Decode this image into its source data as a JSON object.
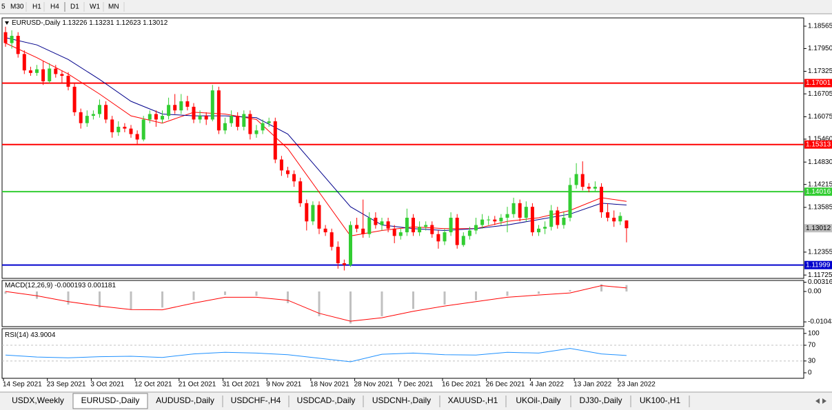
{
  "toolbar": {
    "timeframes": [
      "5",
      "M30",
      "H1",
      "H4",
      "D1",
      "W1",
      "MN"
    ]
  },
  "chart_data": [
    {
      "type": "candlestick",
      "title": "EURUSD-,Daily",
      "up_color": "#32cd32",
      "down_color": "#ff0000",
      "categories": [
        "14 Sep 2021",
        null,
        null,
        null,
        null,
        null,
        null,
        "23 Sep 2021",
        null,
        null,
        null,
        null,
        null,
        null,
        "3 Oct 2021",
        null,
        null,
        null,
        null,
        null,
        null,
        "12 Oct 2021",
        null,
        null,
        null,
        null,
        null,
        null,
        "21 Oct 2021",
        null,
        null,
        null,
        null,
        null,
        null,
        "31 Oct 2021",
        null,
        null,
        null,
        null,
        null,
        null,
        "9 Nov 2021",
        null,
        null,
        null,
        null,
        null,
        null,
        "18 Nov 2021",
        null,
        null,
        null,
        null,
        null,
        null,
        "28 Nov 2021",
        null,
        null,
        null,
        null,
        null,
        null,
        "7 Dec 2021",
        null,
        null,
        null,
        null,
        null,
        null,
        "16 Dec 2021",
        null,
        null,
        null,
        null,
        null,
        null,
        "26 Dec 2021",
        null,
        null,
        null,
        null,
        null,
        null,
        "4 Jan 2022",
        null,
        null,
        null,
        null,
        null,
        null,
        "13 Jan 2022",
        null,
        null,
        null,
        null,
        null,
        null,
        "23 Jan 2022",
        null
      ],
      "open": [
        1.184,
        1.181,
        1.183,
        1.178,
        1.1735,
        1.1728,
        1.1738,
        1.1705,
        1.174,
        1.1725,
        1.172,
        1.169,
        1.162,
        1.159,
        1.161,
        1.1615,
        1.164,
        1.16,
        1.1565,
        1.158,
        1.1575,
        1.156,
        1.1545,
        1.16,
        1.1615,
        1.16,
        1.161,
        1.164,
        1.1625,
        1.165,
        1.1635,
        1.16,
        1.161,
        1.16,
        1.168,
        1.157,
        1.159,
        1.161,
        1.158,
        1.1615,
        1.156,
        1.157,
        1.159,
        1.1595,
        1.149,
        1.146,
        1.145,
        1.143,
        1.137,
        1.132,
        1.1365,
        1.13,
        1.129,
        1.125,
        1.1205,
        1.12,
        1.131,
        1.13,
        1.1285,
        1.133,
        1.131,
        1.132,
        1.13,
        1.128,
        1.129,
        1.133,
        1.129,
        1.1305,
        1.131,
        1.1285,
        1.1265,
        1.129,
        1.133,
        1.1255,
        1.128,
        1.1295,
        1.131,
        1.1325,
        1.1325,
        1.132,
        1.133,
        1.134,
        1.137,
        1.133,
        1.136,
        1.129,
        1.13,
        1.1305,
        1.135,
        1.131,
        1.133,
        1.142,
        1.145,
        1.1415,
        1.141,
        1.1415,
        1.1345,
        1.133,
        1.132,
        1.13226
      ],
      "high": [
        1.1855,
        1.1845,
        1.184,
        1.179,
        1.1745,
        1.175,
        1.176,
        1.1755,
        1.175,
        1.1735,
        1.173,
        1.17,
        1.163,
        1.1625,
        1.1625,
        1.1655,
        1.165,
        1.161,
        1.1595,
        1.159,
        1.1585,
        1.157,
        1.161,
        1.1625,
        1.1625,
        1.1625,
        1.166,
        1.167,
        1.167,
        1.1665,
        1.1645,
        1.1625,
        1.162,
        1.1695,
        1.169,
        1.1605,
        1.1625,
        1.162,
        1.1625,
        1.1625,
        1.1585,
        1.16,
        1.1605,
        1.1605,
        1.15,
        1.147,
        1.146,
        1.144,
        1.138,
        1.1375,
        1.1375,
        1.131,
        1.13,
        1.1265,
        1.1215,
        1.132,
        1.133,
        1.138,
        1.1345,
        1.1345,
        1.133,
        1.133,
        1.131,
        1.13,
        1.1355,
        1.134,
        1.132,
        1.132,
        1.132,
        1.1295,
        1.13,
        1.1345,
        1.134,
        1.129,
        1.1305,
        1.133,
        1.134,
        1.1335,
        1.1335,
        1.134,
        1.136,
        1.1385,
        1.138,
        1.1375,
        1.137,
        1.131,
        1.132,
        1.1365,
        1.136,
        1.1345,
        1.144,
        1.148,
        1.1485,
        1.1425,
        1.143,
        1.1425,
        1.137,
        1.135,
        1.1345,
        1.13231
      ],
      "low": [
        1.18,
        1.1795,
        1.177,
        1.1725,
        1.172,
        1.172,
        1.1695,
        1.17,
        1.1715,
        1.17,
        1.168,
        1.161,
        1.1575,
        1.158,
        1.16,
        1.1605,
        1.159,
        1.155,
        1.1555,
        1.1565,
        1.155,
        1.153,
        1.154,
        1.159,
        1.158,
        1.159,
        1.16,
        1.1615,
        1.1615,
        1.1625,
        1.159,
        1.159,
        1.1585,
        1.1595,
        1.156,
        1.156,
        1.158,
        1.157,
        1.157,
        1.1545,
        1.155,
        1.156,
        1.158,
        1.148,
        1.1445,
        1.144,
        1.1415,
        1.136,
        1.1295,
        1.131,
        1.1285,
        1.128,
        1.124,
        1.119,
        1.1185,
        1.1195,
        1.129,
        1.1275,
        1.1275,
        1.13,
        1.1295,
        1.129,
        1.126,
        1.127,
        1.128,
        1.128,
        1.128,
        1.1295,
        1.1275,
        1.1245,
        1.1255,
        1.128,
        1.1245,
        1.125,
        1.127,
        1.1285,
        1.13,
        1.131,
        1.131,
        1.131,
        1.129,
        1.133,
        1.132,
        1.132,
        1.128,
        1.128,
        1.1285,
        1.1295,
        1.13,
        1.13,
        1.132,
        1.141,
        1.1405,
        1.14,
        1.14,
        1.133,
        1.132,
        1.1305,
        1.131,
        1.12623
      ],
      "close": [
        1.181,
        1.183,
        1.178,
        1.1735,
        1.1728,
        1.1738,
        1.1705,
        1.174,
        1.1725,
        1.172,
        1.169,
        1.162,
        1.159,
        1.161,
        1.1615,
        1.164,
        1.16,
        1.1565,
        1.158,
        1.1575,
        1.156,
        1.1545,
        1.16,
        1.1615,
        1.16,
        1.161,
        1.164,
        1.1625,
        1.165,
        1.1635,
        1.16,
        1.161,
        1.16,
        1.168,
        1.157,
        1.159,
        1.161,
        1.158,
        1.1615,
        1.156,
        1.157,
        1.159,
        1.1595,
        1.149,
        1.146,
        1.145,
        1.143,
        1.137,
        1.132,
        1.1365,
        1.13,
        1.129,
        1.125,
        1.1205,
        1.12,
        1.131,
        1.13,
        1.1285,
        1.133,
        1.131,
        1.132,
        1.13,
        1.128,
        1.129,
        1.133,
        1.129,
        1.1305,
        1.131,
        1.1285,
        1.1265,
        1.129,
        1.133,
        1.1255,
        1.128,
        1.1295,
        1.131,
        1.1325,
        1.1325,
        1.132,
        1.133,
        1.134,
        1.137,
        1.133,
        1.136,
        1.129,
        1.13,
        1.1305,
        1.135,
        1.131,
        1.133,
        1.142,
        1.145,
        1.1415,
        1.141,
        1.1415,
        1.1345,
        1.133,
        1.132,
        1.1335,
        1.13012
      ],
      "series": [
        {
          "color": "#ff0000",
          "x": [
            0,
            5,
            10,
            15,
            20,
            25,
            30,
            35,
            40,
            45,
            50,
            55,
            60,
            65,
            70,
            75,
            80,
            85,
            90,
            95,
            99
          ],
          "values": [
            1.181,
            1.177,
            1.1725,
            1.167,
            1.161,
            1.159,
            1.162,
            1.1615,
            1.16,
            1.152,
            1.14,
            1.128,
            1.1295,
            1.1305,
            1.13,
            1.13,
            1.132,
            1.133,
            1.135,
            1.1385,
            1.1375
          ]
        },
        {
          "color": "#00008b",
          "x": [
            0,
            5,
            10,
            15,
            20,
            25,
            30,
            35,
            40,
            45,
            50,
            55,
            60,
            65,
            70,
            75,
            80,
            85,
            90,
            95,
            99
          ],
          "values": [
            1.1825,
            1.1805,
            1.1765,
            1.171,
            1.165,
            1.1615,
            1.161,
            1.161,
            1.1605,
            1.156,
            1.146,
            1.136,
            1.131,
            1.13,
            1.1295,
            1.13,
            1.131,
            1.1325,
            1.134,
            1.137,
            1.1365
          ]
        }
      ],
      "levels": [
        {
          "value": 1.17001,
          "color": "#ff0000"
        },
        {
          "value": 1.15313,
          "color": "#ff0000"
        },
        {
          "value": 1.14016,
          "color": "#32cd32"
        },
        {
          "value": 1.11999,
          "color": "#0000cd"
        }
      ],
      "ylim": [
        1.11633,
        1.18792
      ],
      "yticks": [
        1.18565,
        {
          "value": 1.1795,
          "label": "1.17950"
        },
        1.17325,
        1.16705,
        1.16075,
        {
          "value": 1.1546,
          "label": "1.15460"
        },
        {
          "value": 1.1483,
          "label": "1.14830"
        },
        1.14215,
        1.13585,
        1.12355,
        1.11725
      ]
    },
    {
      "type": "macd",
      "title": "MACD(12,26,9)",
      "main_value": -0.000193,
      "signal_value": 0.001181,
      "histogram": {
        "color": "#c0c0c0",
        "x": [
          0,
          5,
          10,
          15,
          20,
          25,
          30,
          35,
          40,
          45,
          50,
          55,
          60,
          65,
          70,
          75,
          80,
          85,
          90,
          95,
          99
        ],
        "values": [
          -0.0008,
          -0.0025,
          -0.0045,
          -0.0055,
          -0.0062,
          -0.0055,
          -0.003,
          -0.0012,
          -0.0015,
          -0.004,
          -0.0085,
          -0.011,
          -0.0085,
          -0.006,
          -0.0045,
          -0.003,
          -0.0015,
          -0.0008,
          0.0005,
          0.0025,
          0.0022
        ]
      },
      "signal": {
        "color": "#ff0000",
        "x": [
          0,
          5,
          10,
          15,
          20,
          25,
          30,
          35,
          40,
          45,
          50,
          55,
          60,
          65,
          70,
          75,
          80,
          85,
          90,
          95,
          99
        ],
        "values": [
          0.0,
          -0.0015,
          -0.0035,
          -0.005,
          -0.0062,
          -0.0063,
          -0.004,
          -0.002,
          -0.002,
          -0.003,
          -0.0075,
          -0.0102,
          -0.009,
          -0.0068,
          -0.005,
          -0.0035,
          -0.002,
          -0.0012,
          -0.0005,
          0.002,
          0.0012
        ]
      },
      "ylim": [
        -0.01206,
        0.00378
      ],
      "yticks": [
        0.003165,
        {
          "value": 0,
          "label": "0.00"
        },
        -0.01043
      ]
    },
    {
      "type": "rsi",
      "title": "RSI(14)",
      "value": 43.9004,
      "color": "#1e90ff",
      "x": [
        0,
        5,
        10,
        15,
        20,
        25,
        30,
        35,
        40,
        45,
        50,
        55,
        60,
        65,
        70,
        75,
        80,
        85,
        90,
        95,
        99
      ],
      "values": [
        45,
        40,
        38,
        41,
        42,
        39,
        48,
        52,
        50,
        46,
        37,
        28,
        47,
        50,
        46,
        45,
        52,
        50,
        62,
        48,
        44
      ],
      "levels": [
        70,
        30
      ],
      "ylim": [
        -14,
        112
      ],
      "yticks": [
        100,
        70,
        30,
        0
      ]
    }
  ],
  "tabs": {
    "items": [
      "USDX,Weekly",
      "EURUSD-,Daily",
      "AUDUSD-,Daily",
      "USDCHF-,H4",
      "USDCAD-,Daily",
      "USDCNH-,Daily",
      "XAUUSD-,H1",
      "UKOil-,Daily",
      "DJ30-,Daily",
      "UK100-,H1"
    ],
    "active": "EURUSD-,Daily"
  }
}
